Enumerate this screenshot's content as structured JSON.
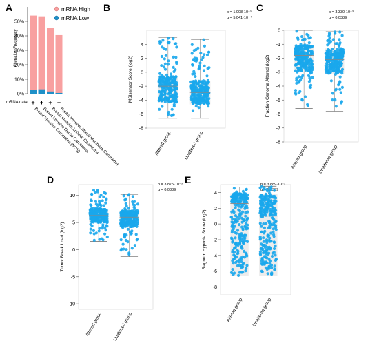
{
  "chart_data": [
    {
      "panel": "A",
      "type": "bar",
      "ylabel": "Alteration Frequency",
      "ylim": [
        0,
        60
      ],
      "yticks": [
        "0%",
        "10%",
        "20%",
        "30%",
        "40%",
        "50%"
      ],
      "row_label": "mRNA data",
      "row_marks": [
        "+",
        "+",
        "+",
        "+"
      ],
      "categories": [
        "Breast Invasive Carcinoma (NOS)",
        "Breast Invasive Ductal Carcinoma",
        "Breast Invasive Lobular Carcinoma",
        "Breast Invasive Mixed Mucinous Carcinoma"
      ],
      "series": [
        {
          "name": "mRNA High",
          "color": "#f8a0a0",
          "values": [
            54,
            53.5,
            45.5,
            40.5
          ]
        },
        {
          "name": "mRNA Low",
          "color": "#1e90c8",
          "values": [
            2.5,
            3,
            1.5,
            0.5
          ]
        }
      ],
      "legend": "top-right",
      "grid": false
    },
    {
      "panel": "B",
      "type": "boxplot",
      "ylabel": "MSIsensor Score (log2)",
      "ylim": [
        -8,
        6
      ],
      "yticks": [
        -8,
        -6,
        -4,
        -2,
        0,
        2,
        4
      ],
      "categories": [
        "Altered group",
        "Unaltered group"
      ],
      "stats": [
        "p = 1.008·10⁻⁵",
        "q = 5.041·10⁻⁴"
      ],
      "boxes": [
        {
          "min": -6.6,
          "q1": -4.3,
          "median": -2.0,
          "q3": -0.6,
          "max": 5.0
        },
        {
          "min": -6.6,
          "q1": -4.6,
          "median": -2.9,
          "q3": -1.2,
          "max": 4.7
        }
      ],
      "color": "#1aa7ec"
    },
    {
      "panel": "C",
      "type": "boxplot",
      "ylabel": "Fraction Genome Altered (log2)",
      "ylim": [
        -8,
        0
      ],
      "yticks": [
        -8,
        -7,
        -6,
        -5,
        -4,
        -3,
        -2,
        -1,
        0
      ],
      "categories": [
        "Altered group",
        "Unaltered group"
      ],
      "stats": [
        "p = 3.330·10⁻³",
        "q = 0.0389"
      ],
      "boxes": [
        {
          "min": -5.6,
          "q1": -2.9,
          "median": -1.8,
          "q3": -1.1,
          "max": 0.0
        },
        {
          "min": -5.8,
          "q1": -3.1,
          "median": -2.1,
          "q3": -1.3,
          "max": -0.1
        }
      ],
      "color": "#1aa7ec"
    },
    {
      "panel": "D",
      "type": "boxplot",
      "ylabel": "Tumor Break Load (log2)",
      "ylim": [
        -11,
        12
      ],
      "yticks": [
        -10,
        -5,
        0,
        5,
        10
      ],
      "categories": [
        "Altered group",
        "Unaltered group"
      ],
      "stats": [
        "p = 3.875·10⁻³",
        "q = 0.0389"
      ],
      "boxes": [
        {
          "min": 1.5,
          "q1": 5.0,
          "median": 6.3,
          "q3": 7.5,
          "max": 11.2
        },
        {
          "min": -1.3,
          "q1": 4.2,
          "median": 6.0,
          "q3": 7.2,
          "max": 10.2
        }
      ],
      "color": "#1aa7ec"
    },
    {
      "panel": "E",
      "type": "boxplot",
      "ylabel": "Ragnum Hypoxia Score (log2)",
      "ylim": [
        -9,
        5
      ],
      "yticks": [
        -8,
        -6,
        -4,
        -2,
        0,
        2,
        4
      ],
      "categories": [
        "Altered group",
        "Unaltered group"
      ],
      "stats": [
        "p = 3.889·10⁻³",
        "q = 0.0389"
      ],
      "boxes": [
        {
          "min": -6.6,
          "q1": -6.6,
          "median": 2.6,
          "q3": 3.9,
          "max": 4.7
        },
        {
          "min": -6.6,
          "q1": -6.6,
          "median": 1.0,
          "q3": 3.8,
          "max": 4.8
        }
      ],
      "color": "#1aa7ec"
    }
  ]
}
